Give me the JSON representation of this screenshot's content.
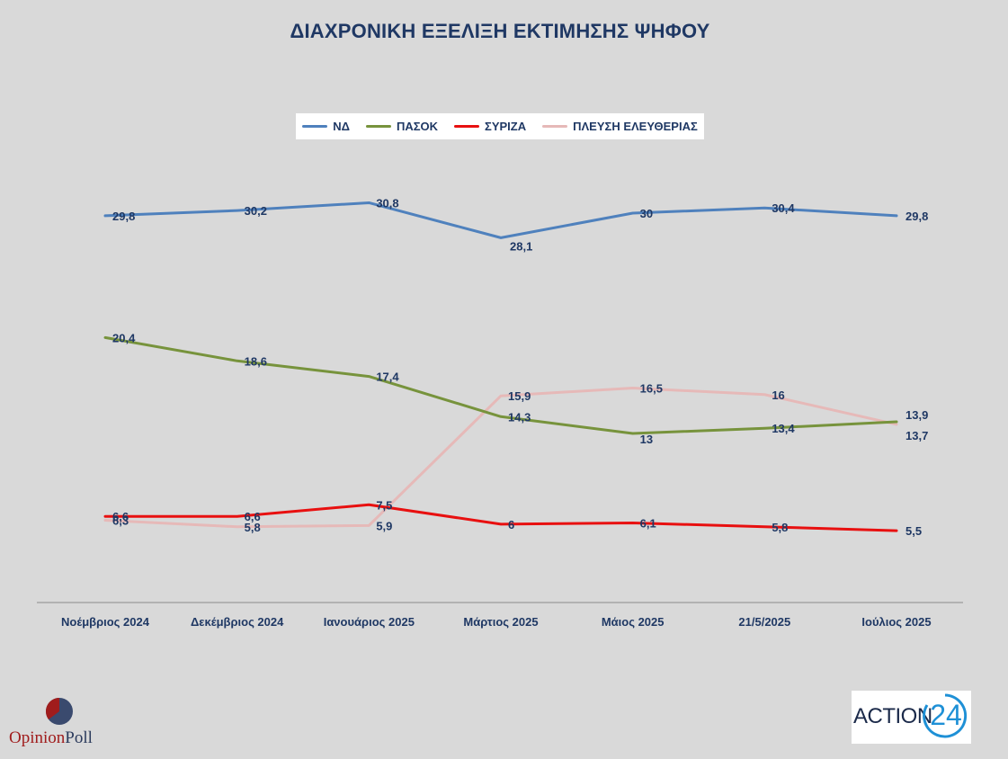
{
  "title": "ΔΙΑΧΡΟΝΙΚΗ ΕΞΕΛΙΞΗ ΕΚΤΙΜΗΣΗΣ ΨΗΦΟΥ",
  "chart_data": {
    "type": "line",
    "title": "ΔΙΑΧΡΟΝΙΚΗ ΕΞΕΛΙΞΗ ΕΚΤΙΜΗΣΗΣ ΨΗΦΟΥ",
    "categories": [
      "Νοέμβριος 2024",
      "Δεκέμβριος 2024",
      "Ιανουάριος 2025",
      "Μάρτιος 2025",
      "Μάιος 2025",
      "21/5/2025",
      "Ιούλιος 2025"
    ],
    "series": [
      {
        "name": "ΝΔ",
        "color": "#4f81bd",
        "values": [
          29.8,
          30.2,
          30.8,
          28.1,
          30,
          30.4,
          29.8
        ],
        "labels": [
          "29,8",
          "30,2",
          "30,8",
          "28,1",
          "30",
          "30,4",
          "29,8"
        ]
      },
      {
        "name": "ΠΑΣΟΚ",
        "color": "#77933c",
        "values": [
          20.4,
          18.6,
          17.4,
          14.3,
          13,
          13.4,
          13.9
        ],
        "labels": [
          "20,4",
          "18,6",
          "17,4",
          "14,3",
          "13",
          "13,4",
          "13,9"
        ]
      },
      {
        "name": "ΣΥΡΙΖΑ",
        "color": "#e81010",
        "values": [
          6.6,
          6.6,
          7.5,
          6,
          6.1,
          5.8,
          5.5
        ],
        "labels": [
          "6,6",
          "6,6",
          "7,5",
          "6",
          "6,1",
          "5,8",
          "5,5"
        ]
      },
      {
        "name": "ΠΛΕΥΣΗ ΕΛΕΥΘΕΡΙΑΣ",
        "color": "#e6b9b8",
        "values": [
          6.3,
          5.8,
          5.9,
          15.9,
          16.5,
          16,
          13.7
        ],
        "labels": [
          "6,3",
          "5,8",
          "5,9",
          "15,9",
          "16,5",
          "16",
          "13,7"
        ]
      }
    ],
    "legend_position": "top",
    "grid": false
  },
  "logos": {
    "opinion_poll": {
      "part1": "Opinion",
      "part2": "Poll"
    },
    "action24": {
      "word": "ACTION",
      "number": "24"
    }
  }
}
